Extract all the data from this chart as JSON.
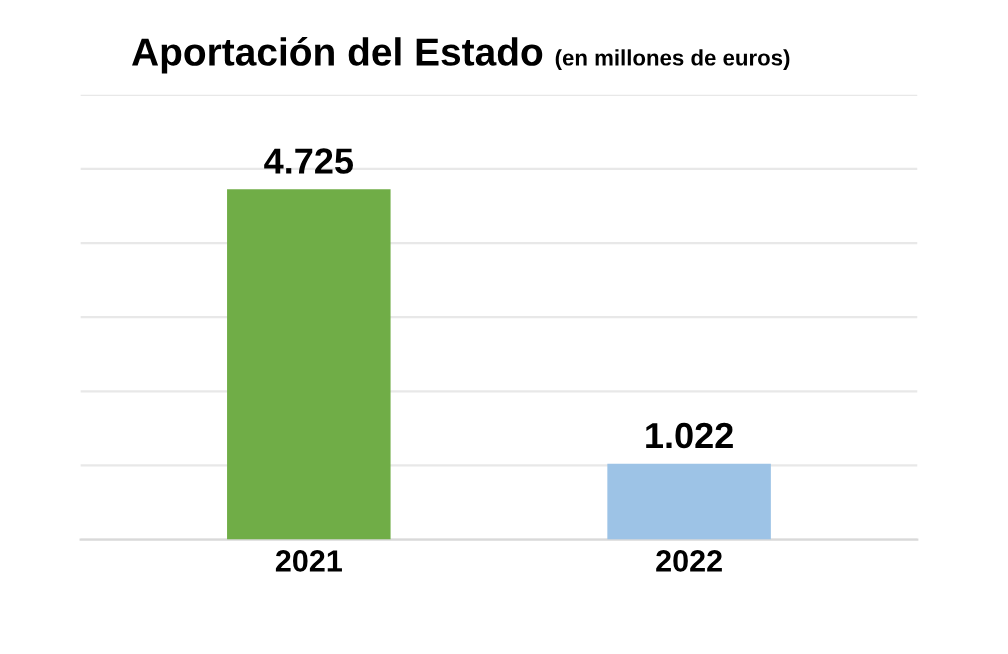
{
  "chart_data": {
    "type": "bar",
    "title": "Aportación del Estado",
    "subtitle": "(en millones de euros)",
    "categories": [
      "2021",
      "2022"
    ],
    "values": [
      4725,
      1022
    ],
    "value_labels": [
      "4.725",
      "1.022"
    ],
    "colors": [
      "#70ad47",
      "#9dc3e6"
    ],
    "ylim": [
      0,
      6000
    ],
    "yticks": [
      {
        "value": 0,
        "label": null
      },
      {
        "value": 1000,
        "label": null
      },
      {
        "value": 2000,
        "label": null
      },
      {
        "value": 3000,
        "label": null
      },
      {
        "value": 4000,
        "label": null
      },
      {
        "value": 5000,
        "label": null
      },
      {
        "value": 6000,
        "label": null
      }
    ],
    "tick_labels": "x",
    "grid": "y",
    "legend": false
  }
}
